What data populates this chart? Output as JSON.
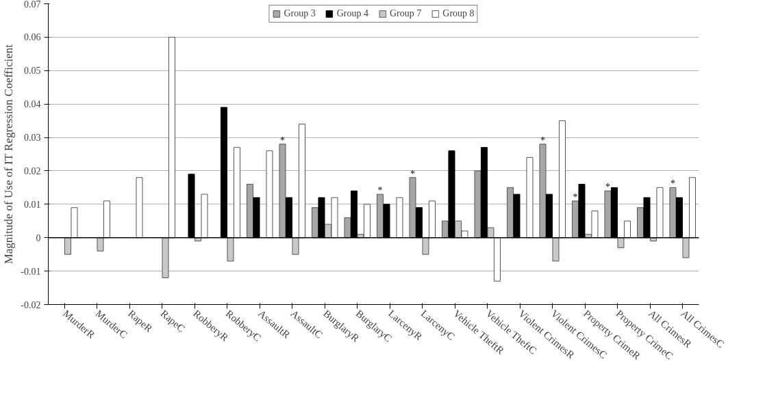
{
  "chart_data": {
    "type": "bar",
    "ylabel": "Magnitude of Use of IT Regression Coefficient",
    "categories": [
      "MurderR",
      "MurderC",
      "RapeR",
      "RapeC",
      "RobberyR",
      "RobberyC",
      "AssaultR",
      "AssaultC",
      "BurglaryR",
      "BurglaryC",
      "LarcenyR",
      "LarcenyC",
      "Vehicle TheftR",
      "Vehicle TheftC",
      "Violent CrimesR",
      "Violent CrimesC",
      "Property CrimeR",
      "Property CrimeC",
      "All CrimesR",
      "All CrimesC"
    ],
    "series": [
      {
        "name": "Group 3",
        "color": "#a6a6a6",
        "values": [
          null,
          null,
          null,
          null,
          null,
          null,
          0.016,
          0.028,
          0.009,
          0.006,
          0.013,
          0.018,
          0.005,
          0.02,
          0.015,
          0.028,
          0.011,
          0.014,
          0.009,
          0.015
        ],
        "value_labels": [
          null,
          null,
          null,
          null,
          null,
          null,
          null,
          "*",
          null,
          null,
          "*",
          "*",
          null,
          null,
          null,
          "*",
          "*",
          "*",
          null,
          "*"
        ]
      },
      {
        "name": "Group 4",
        "color": "#000000",
        "values": [
          null,
          null,
          null,
          null,
          0.019,
          0.039,
          0.012,
          0.012,
          0.012,
          0.014,
          0.01,
          0.009,
          0.026,
          0.027,
          0.013,
          0.013,
          0.016,
          0.015,
          0.012,
          0.012
        ]
      },
      {
        "name": "Group 7",
        "color": "#c8c8c8",
        "values": [
          -0.005,
          -0.004,
          null,
          -0.012,
          -0.001,
          -0.007,
          null,
          -0.005,
          0.004,
          0.001,
          null,
          -0.005,
          0.005,
          0.003,
          null,
          -0.007,
          0.001,
          -0.003,
          -0.001,
          -0.006
        ]
      },
      {
        "name": "Group 8",
        "color": "#ffffff",
        "values": [
          0.009,
          0.011,
          0.018,
          0.06,
          0.013,
          0.027,
          0.026,
          0.034,
          0.012,
          0.01,
          0.012,
          0.011,
          0.002,
          -0.013,
          0.024,
          0.035,
          0.008,
          0.005,
          0.015,
          0.018
        ]
      }
    ],
    "ylim": [
      -0.02,
      0.07
    ],
    "yticks": [
      -0.02,
      -0.01,
      0,
      0.01,
      0.02,
      0.03,
      0.04,
      0.05,
      0.06,
      0.07
    ],
    "grid": "y",
    "legend": "top"
  }
}
